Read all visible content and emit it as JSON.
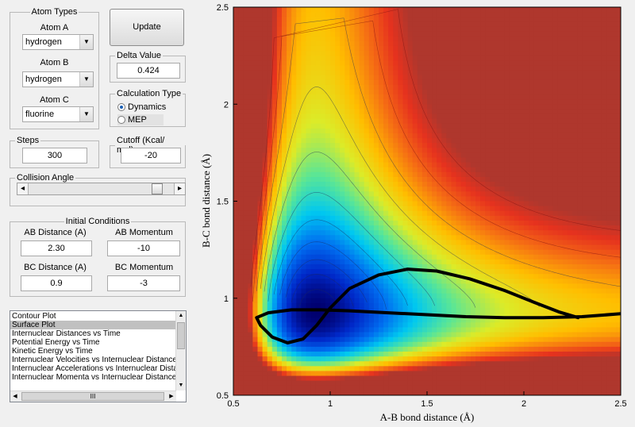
{
  "atom_types": {
    "title": "Atom Types",
    "atom_a_label": "Atom A",
    "atom_a_value": "hydrogen",
    "atom_b_label": "Atom B",
    "atom_b_value": "hydrogen",
    "atom_c_label": "Atom C",
    "atom_c_value": "fluorine"
  },
  "update_button": "Update",
  "delta": {
    "title": "Delta Value",
    "value": "0.424"
  },
  "calc_type": {
    "title": "Calculation Type",
    "options": [
      "Dynamics",
      "MEP"
    ],
    "selected": "Dynamics"
  },
  "steps": {
    "title": "Steps",
    "value": "300"
  },
  "cutoff": {
    "title": "Cutoff (Kcal/ mol)",
    "value": "-20"
  },
  "collision": {
    "title": "Collision Angle",
    "slider_fraction": 0.92,
    "left_arrow": "◂",
    "right_arrow": "▸"
  },
  "initial": {
    "title": "Initial Conditions",
    "ab_distance_label": "AB Distance (A)",
    "ab_distance_value": "2.30",
    "ab_momentum_label": "AB Momentum",
    "ab_momentum_value": "-10",
    "bc_distance_label": "BC Distance (A)",
    "bc_distance_value": "0.9",
    "bc_momentum_label": "BC Momentum",
    "bc_momentum_value": "-3"
  },
  "plot_list": {
    "items": [
      "Contour Plot",
      "Surface Plot",
      "Internuclear Distances vs Time",
      "Potential Energy vs Time",
      "Kinetic Energy vs Time",
      "Internuclear Velocities vs Internuclear Distances",
      "Internuclear Accelerations vs Internuclear Distances",
      "Internuclear Momenta vs Internuclear Distance"
    ],
    "selected_index": 1,
    "hscroll_thumb": "III"
  },
  "chart_data": {
    "type": "heatmap",
    "xlabel": "A-B bond distance (Å)",
    "ylabel": "B-C bond distance (Å)",
    "xlim": [
      0.5,
      2.5
    ],
    "ylim": [
      0.5,
      2.5
    ],
    "xticks": [
      "0.5",
      "1",
      "1.5",
      "2",
      "2.5"
    ],
    "yticks": [
      "0.5",
      "1",
      "1.5",
      "2",
      "2.5"
    ],
    "trajectory_start": [
      2.3,
      0.9
    ]
  }
}
